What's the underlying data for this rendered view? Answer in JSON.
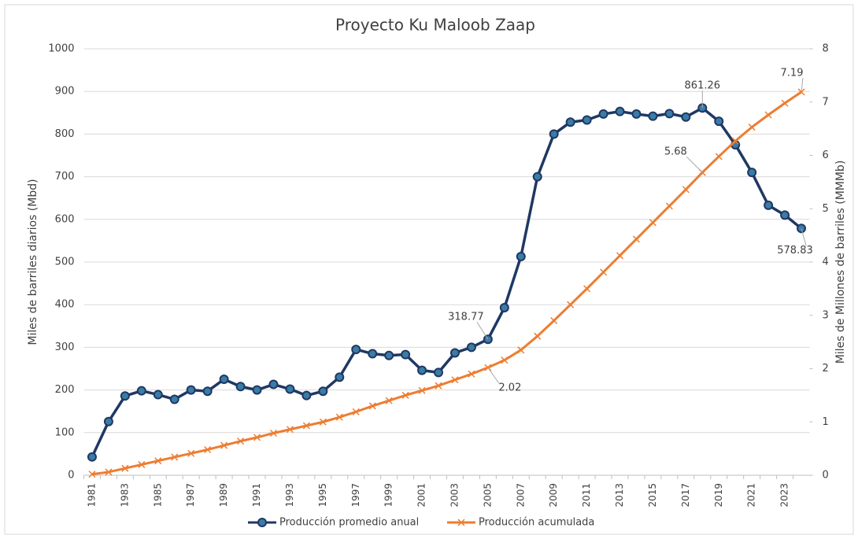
{
  "chart_data": {
    "type": "line",
    "title": "Proyecto Ku Maloob Zaap",
    "y_label": "Miles de barriles diarios (Mbd)",
    "y2_label": "Miles de Millones de barriles (MMMb)",
    "categories": [
      "1981",
      null,
      "1983",
      null,
      "1985",
      null,
      "1987",
      null,
      "1989",
      null,
      "1991",
      null,
      "1993",
      null,
      "1995",
      null,
      "1997",
      null,
      "1999",
      null,
      "2001",
      null,
      "2003",
      null,
      "2005",
      null,
      "2007",
      null,
      "2009",
      null,
      "2011",
      null,
      "2013",
      null,
      "2015",
      null,
      "2017",
      null,
      "2019",
      null,
      "2021",
      null,
      "2023",
      null
    ],
    "series": [
      {
        "name": "Producción promedio anual",
        "color": "#1f3864",
        "marker": "circle",
        "marker_color": "#3a7ca5",
        "values": [
          43,
          126,
          186,
          198,
          189,
          178,
          200,
          197,
          225,
          208,
          200,
          213,
          202,
          187,
          197,
          230,
          295,
          285,
          281,
          283,
          246,
          241,
          287,
          300,
          318.77,
          393,
          513,
          700,
          800,
          828,
          833,
          847,
          853,
          847,
          842,
          848,
          840,
          861.26,
          830,
          775,
          710,
          633,
          610,
          578.83
        ],
        "value_labels": [
          null,
          null,
          null,
          null,
          null,
          null,
          null,
          null,
          null,
          null,
          null,
          null,
          null,
          null,
          null,
          null,
          null,
          null,
          null,
          null,
          null,
          null,
          null,
          null,
          "318.77",
          null,
          null,
          null,
          null,
          null,
          null,
          null,
          null,
          null,
          null,
          null,
          null,
          "861.26",
          null,
          null,
          null,
          null,
          null,
          "578.83"
        ]
      },
      {
        "name": "Producción acumulada",
        "color": "#ed7d31",
        "marker": "x",
        "axis": "y2",
        "values": [
          0.02,
          0.06,
          0.13,
          0.2,
          0.27,
          0.34,
          0.41,
          0.48,
          0.56,
          0.64,
          0.71,
          0.79,
          0.86,
          0.93,
          1.0,
          1.09,
          1.19,
          1.3,
          1.4,
          1.5,
          1.59,
          1.68,
          1.79,
          1.9,
          2.02,
          2.16,
          2.35,
          2.61,
          2.9,
          3.2,
          3.5,
          3.81,
          4.12,
          4.43,
          4.74,
          5.05,
          5.36,
          5.68,
          5.98,
          6.27,
          6.53,
          6.76,
          6.98,
          7.19
        ],
        "value_labels": [
          null,
          null,
          null,
          null,
          null,
          null,
          null,
          null,
          null,
          null,
          null,
          null,
          null,
          null,
          null,
          null,
          null,
          null,
          null,
          null,
          null,
          null,
          null,
          null,
          "2.02",
          null,
          null,
          null,
          null,
          null,
          null,
          null,
          null,
          null,
          null,
          null,
          null,
          "5.68",
          null,
          null,
          null,
          null,
          null,
          "7.19"
        ]
      }
    ],
    "ylim": [
      0,
      1000
    ],
    "yticks": [
      0,
      100,
      200,
      300,
      400,
      500,
      600,
      700,
      800,
      900,
      1000
    ],
    "y2lim": [
      0,
      8
    ],
    "y2ticks": [
      0,
      1,
      2,
      3,
      4,
      5,
      6,
      7,
      8
    ],
    "grid": true,
    "legend": "bottom"
  }
}
